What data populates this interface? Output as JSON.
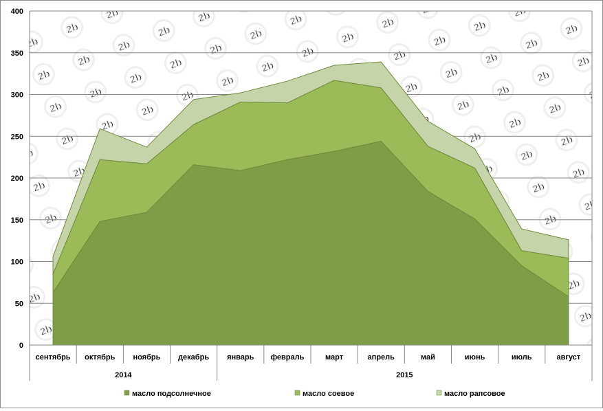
{
  "chart_data": {
    "type": "area",
    "stacked": true,
    "categories": [
      "сентябрь",
      "октябрь",
      "ноябрь",
      "декабрь",
      "январь",
      "февраль",
      "март",
      "апрель",
      "май",
      "июнь",
      "июль",
      "август"
    ],
    "groups": [
      {
        "label": "2014",
        "span": 4
      },
      {
        "label": "2015",
        "span": 8
      }
    ],
    "series": [
      {
        "name": "масло подсолнечное",
        "color": "#7f9c47",
        "values": [
          63,
          148,
          159,
          216,
          209,
          222,
          232,
          244,
          184,
          151,
          95,
          58
        ]
      },
      {
        "name": "масло соевое",
        "color": "#9bbb59",
        "values": [
          22,
          74,
          58,
          48,
          82,
          68,
          85,
          64,
          54,
          61,
          18,
          46
        ]
      },
      {
        "name": "масло рапсовое",
        "color": "#c5d4a9",
        "values": [
          21,
          37,
          20,
          30,
          11,
          26,
          18,
          31,
          30,
          23,
          26,
          22
        ]
      }
    ],
    "ylim": [
      0,
      400
    ],
    "yticks": [
      0,
      50,
      100,
      150,
      200,
      250,
      300,
      350,
      400
    ],
    "grid": true,
    "legend": "bottom",
    "watermark": "2b"
  }
}
